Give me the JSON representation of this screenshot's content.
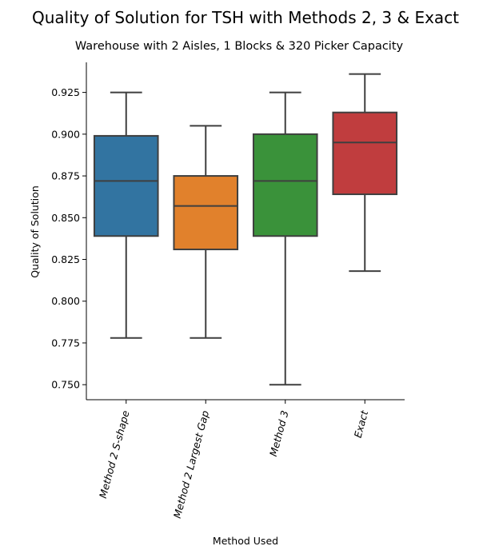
{
  "chart_data": {
    "type": "box",
    "title": "Quality of Solution for TSH with Methods 2, 3 & Exact",
    "subtitle": "Warehouse with 2 Aisles, 1 Blocks & 320 Picker Capacity",
    "xlabel": "Method Used",
    "ylabel": "Quality of Solution",
    "ylim": [
      0.741,
      0.943
    ],
    "yticks": [
      "0.750",
      "0.775",
      "0.800",
      "0.825",
      "0.850",
      "0.875",
      "0.900",
      "0.925"
    ],
    "grid": false,
    "legend": "none",
    "series": [
      {
        "category": "Method 2 S-shape",
        "whisker_low": 0.778,
        "q1": 0.839,
        "median": 0.872,
        "q3": 0.899,
        "whisker_high": 0.925,
        "color": "#3274a1"
      },
      {
        "category": "Method 2 Largest Gap",
        "whisker_low": 0.778,
        "q1": 0.831,
        "median": 0.857,
        "q3": 0.875,
        "whisker_high": 0.905,
        "color": "#e1812c"
      },
      {
        "category": "Method 3",
        "whisker_low": 0.75,
        "q1": 0.839,
        "median": 0.872,
        "q3": 0.9,
        "whisker_high": 0.925,
        "color": "#3a923a"
      },
      {
        "category": "Exact",
        "whisker_low": 0.818,
        "q1": 0.864,
        "median": 0.895,
        "q3": 0.913,
        "whisker_high": 0.936,
        "color": "#c03d3e"
      }
    ]
  }
}
